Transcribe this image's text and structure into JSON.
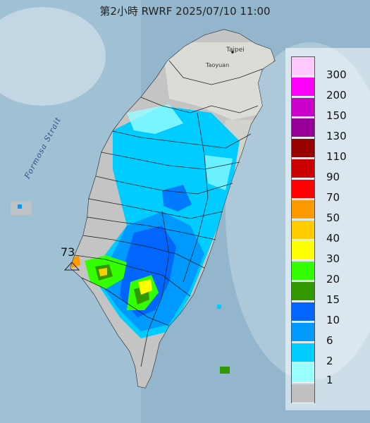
{
  "title": "第2小時  RWRF 2025/07/10 11:00",
  "labels": {
    "strait": "Formosa Strait",
    "taipei": "Taipei",
    "taoyuan": "Taoyuan",
    "max_value": "73"
  },
  "legend": [
    {
      "label": "300",
      "color": "#ffc8ff"
    },
    {
      "label": "200",
      "color": "#ff00ff"
    },
    {
      "label": "150",
      "color": "#cc00cc"
    },
    {
      "label": "130",
      "color": "#990099"
    },
    {
      "label": "110",
      "color": "#990000"
    },
    {
      "label": "90",
      "color": "#cc0000"
    },
    {
      "label": "70",
      "color": "#ff0000"
    },
    {
      "label": "50",
      "color": "#ff9900"
    },
    {
      "label": "40",
      "color": "#ffcc00"
    },
    {
      "label": "30",
      "color": "#ffff00"
    },
    {
      "label": "20",
      "color": "#33ff00"
    },
    {
      "label": "15",
      "color": "#339900"
    },
    {
      "label": "10",
      "color": "#0066ff"
    },
    {
      "label": "6",
      "color": "#0099ff"
    },
    {
      "label": "2",
      "color": "#00ccff"
    },
    {
      "label": "1",
      "color": "#99ffff"
    },
    {
      "label": "",
      "color": "#c0c0c0"
    }
  ]
}
